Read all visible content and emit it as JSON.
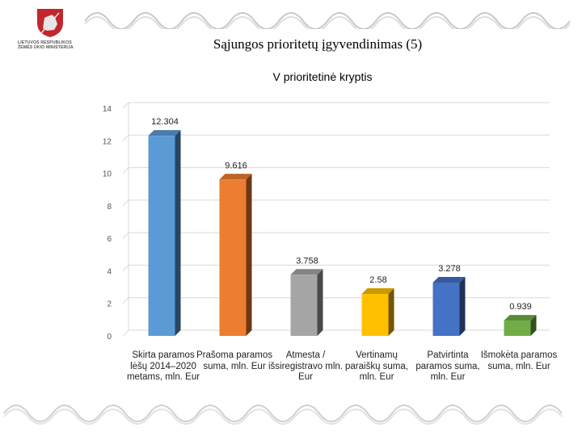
{
  "header": {
    "logo_text": "Lietuvos Respublikos žemės ūkio ministerija",
    "slide_title": "Sąjungos prioritetų įgyvendinimas (5)"
  },
  "chart_data": {
    "type": "bar",
    "title": "V prioritetinė kryptis",
    "categories": [
      "Skirta paramos lėšų 2014–2020 metams, mln. Eur",
      "Prašoma paramos suma, mln. Eur",
      "Atmesta / išsiregistravo mln. Eur",
      "Vertinamų paraiškų suma, mln. Eur",
      "Patvirtinta paramos suma, mln. Eur",
      "Išmokėta paramos suma, mln. Eur"
    ],
    "values": [
      12.304,
      9.616,
      3.758,
      2.58,
      3.278,
      0.939
    ],
    "data_labels": [
      "12.304",
      "9.616",
      "3.758",
      "2.58",
      "3.278",
      "0.939"
    ],
    "colors": [
      "#5b9bd5",
      "#ed7d31",
      "#a5a5a5",
      "#ffc000",
      "#4472c4",
      "#70ad47"
    ],
    "ylim": [
      0,
      14
    ],
    "yticks": [
      "0",
      "2",
      "4",
      "6",
      "8",
      "10",
      "12",
      "14"
    ],
    "grid": true,
    "legend": "none"
  }
}
